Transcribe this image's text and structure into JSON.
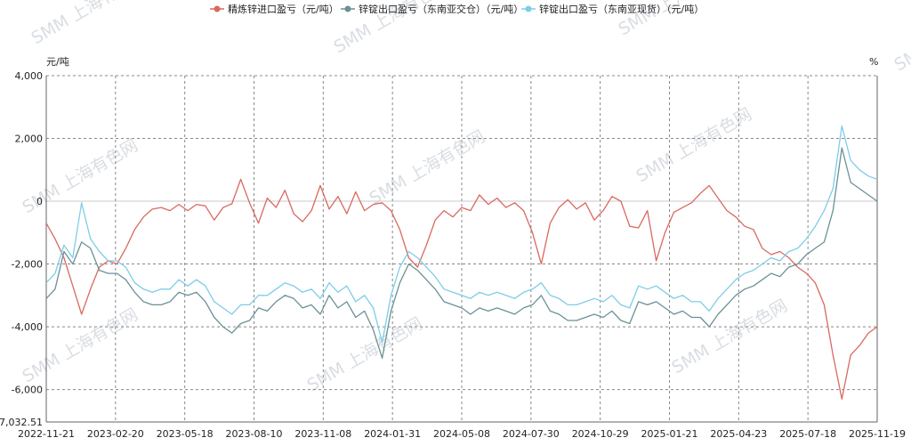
{
  "chart_data": {
    "type": "line",
    "y_unit_left": "元/吨",
    "y_unit_right": "%",
    "ylim": [
      -7032.51,
      4000
    ],
    "y_ticks": [
      {
        "value": 4000,
        "label": "4,000"
      },
      {
        "value": 2000,
        "label": "2,000"
      },
      {
        "value": 0,
        "label": "0"
      },
      {
        "value": -2000,
        "label": "-2,000"
      },
      {
        "value": -4000,
        "label": "-4,000"
      },
      {
        "value": -6000,
        "label": "-6,000"
      },
      {
        "value": -7032.51,
        "label": "-7,032.51"
      }
    ],
    "x_ticks": [
      "2022-11-21",
      "2023-02-20",
      "2023-05-18",
      "2023-08-10",
      "2023-11-08",
      "2024-01-31",
      "2024-05-08",
      "2024-07-30",
      "2024-10-29",
      "2025-01-21",
      "2025-04-23",
      "2025-07-18",
      "2025-11-19"
    ],
    "grid": true,
    "legend_position": "top",
    "series": [
      {
        "name": "精炼锌进口盈亏（元/吨）",
        "color": "#d9695f",
        "values": [
          -700,
          -1200,
          -1800,
          -2700,
          -3600,
          -2800,
          -2100,
          -1900,
          -2000,
          -1500,
          -900,
          -500,
          -250,
          -200,
          -300,
          -100,
          -300,
          -100,
          -150,
          -600,
          -200,
          -80,
          700,
          -50,
          -700,
          100,
          -200,
          350,
          -400,
          -650,
          -300,
          500,
          -250,
          150,
          -400,
          300,
          -300,
          -100,
          -50,
          -300,
          -900,
          -1800,
          -2100,
          -1400,
          -600,
          -300,
          -500,
          -200,
          -300,
          200,
          -100,
          100,
          -200,
          -50,
          -300,
          -1000,
          -2000,
          -700,
          -200,
          50,
          -250,
          -50,
          -600,
          -300,
          150,
          0,
          -800,
          -850,
          -300,
          -1900,
          -1000,
          -350,
          -200,
          -50,
          250,
          500,
          100,
          -300,
          -500,
          -800,
          -900,
          -1500,
          -1700,
          -1600,
          -1800,
          -2100,
          -2300,
          -2600,
          -3300,
          -4900,
          -6300,
          -4900,
          -4600,
          -4200,
          -4000
        ]
      },
      {
        "name": "锌锭出口盈亏（东南亚交仓）（元/吨）",
        "color": "#6b9196",
        "values": [
          -3100,
          -2800,
          -1600,
          -2000,
          -1300,
          -1500,
          -2200,
          -2300,
          -2300,
          -2500,
          -2900,
          -3200,
          -3300,
          -3300,
          -3200,
          -2900,
          -3000,
          -2900,
          -3200,
          -3700,
          -4000,
          -4200,
          -3900,
          -3800,
          -3400,
          -3500,
          -3200,
          -3000,
          -3100,
          -3400,
          -3300,
          -3600,
          -3000,
          -3400,
          -3200,
          -3700,
          -3500,
          -4100,
          -5000,
          -3500,
          -2600,
          -2000,
          -2200,
          -2500,
          -2800,
          -3200,
          -3300,
          -3400,
          -3600,
          -3400,
          -3500,
          -3400,
          -3500,
          -3600,
          -3400,
          -3300,
          -3000,
          -3500,
          -3600,
          -3800,
          -3800,
          -3700,
          -3600,
          -3700,
          -3500,
          -3800,
          -3900,
          -3200,
          -3300,
          -3200,
          -3400,
          -3600,
          -3500,
          -3700,
          -3700,
          -4000,
          -3600,
          -3300,
          -3000,
          -2800,
          -2700,
          -2500,
          -2300,
          -2400,
          -2100,
          -2000,
          -1700,
          -1500,
          -1300,
          -300,
          1700,
          600,
          400,
          200,
          0
        ]
      },
      {
        "name": "锌锭出口盈亏（东南亚现货）（元/吨）",
        "color": "#7dcde8",
        "values": [
          -2600,
          -2300,
          -1400,
          -1800,
          -50,
          -1200,
          -1600,
          -1900,
          -1900,
          -2100,
          -2600,
          -2800,
          -2900,
          -2800,
          -2800,
          -2500,
          -2700,
          -2500,
          -2700,
          -3200,
          -3400,
          -3600,
          -3300,
          -3300,
          -3000,
          -3000,
          -2800,
          -2600,
          -2700,
          -2900,
          -2800,
          -3100,
          -2600,
          -2900,
          -2700,
          -3200,
          -3000,
          -3400,
          -4500,
          -3000,
          -2100,
          -1600,
          -1800,
          -2100,
          -2400,
          -2800,
          -2900,
          -3000,
          -3100,
          -2900,
          -3000,
          -2900,
          -3000,
          -3100,
          -2900,
          -2800,
          -2600,
          -3000,
          -3100,
          -3300,
          -3300,
          -3200,
          -3100,
          -3200,
          -3000,
          -3300,
          -3400,
          -2700,
          -2800,
          -2700,
          -2900,
          -3100,
          -3000,
          -3200,
          -3200,
          -3500,
          -3100,
          -2800,
          -2500,
          -2300,
          -2200,
          -2000,
          -1800,
          -1900,
          -1600,
          -1500,
          -1200,
          -800,
          -300,
          400,
          2400,
          1300,
          1000,
          800,
          700
        ]
      }
    ]
  },
  "watermark_text": "SMM 上海有色网"
}
